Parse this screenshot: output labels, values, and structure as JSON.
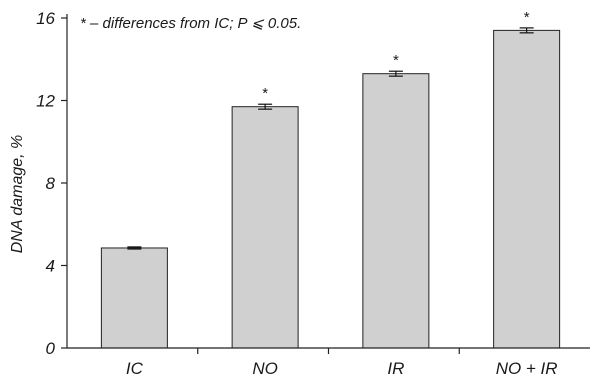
{
  "chart_data": {
    "type": "bar",
    "title": "",
    "annotation": "* – differences from IC; P ⩽ 0.05.",
    "xlabel": "",
    "ylabel": "DNA damage, %",
    "ylim": [
      0,
      16
    ],
    "yticks": [
      "0",
      "4",
      "8",
      "12",
      "16"
    ],
    "categories": [
      "IC",
      "NO",
      "IR",
      "NO + IR"
    ],
    "values": [
      4.85,
      11.7,
      13.3,
      15.4
    ],
    "errors": [
      0.05,
      0.12,
      0.12,
      0.12
    ],
    "significance_marks": [
      "",
      "*",
      "*",
      "*"
    ],
    "bar_color": "#d0d0d0",
    "bar_edge_color": "#222222",
    "grid": false,
    "legend": "none"
  }
}
